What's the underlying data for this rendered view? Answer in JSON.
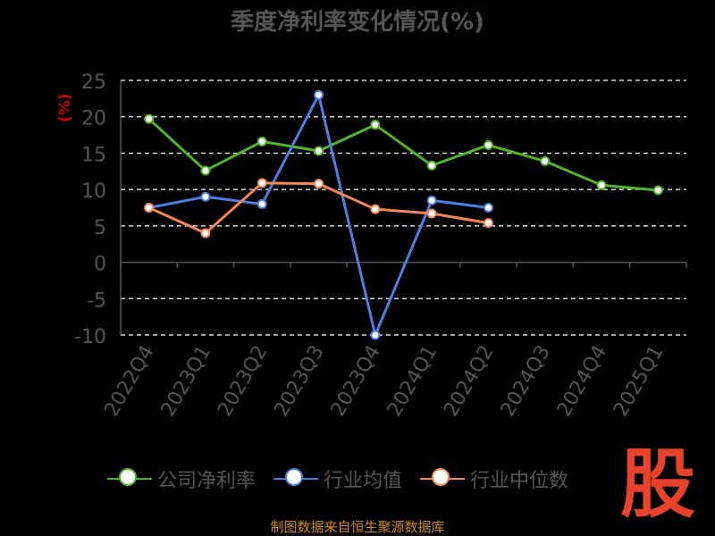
{
  "title": "季度净利率变化情况(%)",
  "ylabel": "(%)",
  "source": "制图数据来自恒生聚源数据库",
  "watermark": "股",
  "legend": {
    "item0": "公司净利率",
    "item1": "行业均值",
    "item2": "行业中位数"
  },
  "colors": {
    "background": "#000000",
    "company": "#52b52a",
    "industry_mean": "#4c7fe0",
    "industry_median": "#f5865a",
    "grid": "#ffffff",
    "axis_text": "#555555"
  },
  "chart_data": {
    "type": "line",
    "title": "季度净利率变化情况(%)",
    "ylabel": "(%)",
    "xlabel": "",
    "categories": [
      "2022Q4",
      "2023Q1",
      "2023Q2",
      "2023Q3",
      "2023Q4",
      "2024Q1",
      "2024Q2",
      "2024Q3",
      "2024Q4",
      "2025Q1"
    ],
    "ylim": [
      -10,
      25
    ],
    "yticks": [
      25,
      20,
      15,
      10,
      5,
      0,
      -5,
      -10
    ],
    "grid": "horizontal dashed",
    "legend_position": "bottom",
    "series": [
      {
        "name": "公司净利率",
        "color": "#52b52a",
        "values": [
          19.7,
          12.6,
          16.6,
          15.3,
          18.9,
          13.3,
          16.1,
          13.9,
          10.6,
          9.9
        ]
      },
      {
        "name": "行业均值",
        "color": "#4c7fe0",
        "values": [
          7.5,
          9.0,
          8.0,
          23.0,
          -10.0,
          8.5,
          7.5,
          null,
          null,
          null
        ]
      },
      {
        "name": "行业中位数",
        "color": "#f5865a",
        "values": [
          7.5,
          4.0,
          10.9,
          10.8,
          7.3,
          6.7,
          5.4,
          null,
          null,
          null
        ]
      }
    ]
  }
}
